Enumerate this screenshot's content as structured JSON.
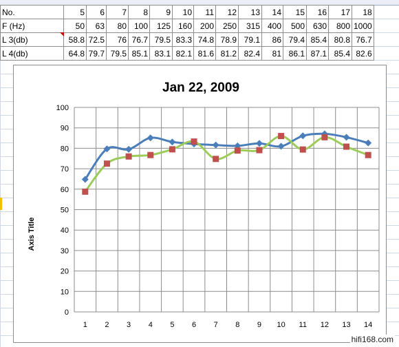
{
  "table": {
    "rows": [
      {
        "label": "No.",
        "values": [
          "5",
          "6",
          "7",
          "8",
          "9",
          "10",
          "11",
          "12",
          "13",
          "14",
          "15",
          "16",
          "17",
          "18"
        ]
      },
      {
        "label": "F (Hz)",
        "values": [
          "50",
          "63",
          "80",
          "100",
          "125",
          "160",
          "200",
          "250",
          "315",
          "400",
          "500",
          "630",
          "800",
          "1000"
        ]
      },
      {
        "label": "L 3(db)",
        "values": [
          "58.8",
          "72.5",
          "76",
          "76.7",
          "79.5",
          "83.3",
          "74.8",
          "78.9",
          "79.1",
          "86",
          "79.4",
          "85.4",
          "80.8",
          "76.7"
        ]
      },
      {
        "label": "L 4(db)",
        "values": [
          "64.8",
          "79.7",
          "79.5",
          "85.1",
          "83.1",
          "82.1",
          "81.6",
          "81.2",
          "82.4",
          "81",
          "86.1",
          "87.1",
          "85.4",
          "82.6"
        ]
      }
    ]
  },
  "chart_data": {
    "type": "line",
    "title": "Jan 22, 2009",
    "xlabel": "",
    "ylabel": "Axis Title",
    "categories": [
      "1",
      "2",
      "3",
      "4",
      "5",
      "6",
      "7",
      "8",
      "9",
      "10",
      "11",
      "12",
      "13",
      "14"
    ],
    "ylim": [
      0,
      100
    ],
    "yticks": [
      "0",
      "10",
      "20",
      "30",
      "40",
      "50",
      "60",
      "70",
      "80",
      "90",
      "100"
    ],
    "grid": true,
    "legend": "none",
    "series": [
      {
        "values": [
          64.8,
          79.7,
          79.5,
          85.1,
          83.1,
          82.1,
          81.6,
          81.2,
          82.4,
          81,
          86.1,
          87.1,
          85.4,
          82.6
        ],
        "color": "#4a7ebb",
        "marker": "diamond"
      },
      {
        "values": [
          58.8,
          72.5,
          76,
          76.7,
          79.5,
          83.3,
          74.8,
          78.9,
          79.1,
          86,
          79.4,
          85.4,
          80.8,
          76.7
        ],
        "color": "#9bcc58",
        "marker": "square",
        "marker_color": "#c0504d"
      }
    ]
  },
  "watermark": "hifi168.com"
}
